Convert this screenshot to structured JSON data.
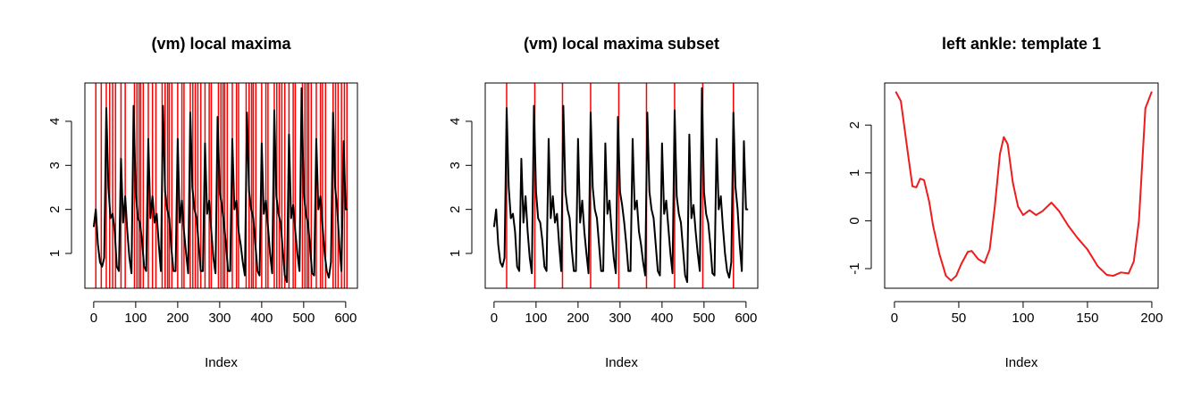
{
  "chart_data": [
    {
      "type": "line",
      "title": "(vm) local maxima",
      "xlabel": "Index",
      "xlim": [
        -21,
        628
      ],
      "ylim": [
        0.21,
        4.87
      ],
      "xticks": [
        0,
        100,
        200,
        300,
        400,
        500,
        600
      ],
      "yticks": [
        1,
        2,
        3,
        4
      ],
      "x": [
        0,
        5,
        10,
        15,
        20,
        25,
        30,
        35,
        40,
        45,
        50,
        55,
        60,
        65,
        70,
        75,
        80,
        85,
        90,
        95,
        100,
        105,
        110,
        115,
        120,
        125,
        130,
        135,
        140,
        145,
        150,
        155,
        160,
        165,
        170,
        175,
        180,
        185,
        190,
        195,
        200,
        205,
        210,
        215,
        220,
        225,
        230,
        235,
        240,
        245,
        250,
        255,
        260,
        265,
        270,
        275,
        280,
        285,
        290,
        295,
        300,
        305,
        310,
        315,
        320,
        325,
        330,
        335,
        340,
        345,
        350,
        355,
        360,
        365,
        370,
        375,
        380,
        385,
        390,
        395,
        400,
        405,
        410,
        415,
        420,
        425,
        430,
        435,
        440,
        445,
        450,
        455,
        460,
        465,
        470,
        475,
        480,
        485,
        490,
        495,
        500,
        505,
        510,
        515,
        520,
        525,
        530,
        535,
        540,
        545,
        550,
        555,
        560,
        565,
        570,
        575,
        580,
        585,
        590,
        595,
        600,
        605
      ],
      "series": [
        {
          "color": "#000000",
          "values": [
            1.6,
            2.0,
            1.2,
            0.8,
            0.7,
            0.9,
            4.3,
            2.5,
            1.8,
            1.9,
            1.5,
            0.7,
            0.6,
            3.15,
            1.7,
            2.3,
            1.5,
            0.9,
            0.55,
            4.35,
            2.4,
            1.8,
            1.7,
            1.3,
            0.7,
            0.6,
            3.6,
            1.8,
            2.3,
            1.7,
            1.9,
            1.2,
            0.6,
            4.35,
            2.4,
            2.0,
            1.8,
            1.1,
            0.6,
            0.6,
            3.6,
            1.7,
            2.2,
            1.5,
            1.0,
            0.55,
            4.2,
            2.5,
            2.0,
            1.8,
            1.2,
            0.6,
            0.6,
            3.5,
            1.9,
            2.2,
            1.5,
            0.9,
            0.55,
            4.1,
            2.4,
            2.1,
            1.7,
            1.2,
            0.6,
            0.6,
            3.6,
            2.0,
            2.2,
            1.5,
            1.2,
            0.8,
            0.5,
            4.2,
            2.4,
            2.0,
            1.8,
            1.2,
            0.6,
            0.5,
            3.5,
            1.9,
            2.2,
            1.6,
            1.0,
            0.55,
            4.25,
            2.3,
            1.9,
            1.7,
            1.1,
            0.5,
            0.35,
            3.7,
            1.8,
            2.1,
            1.5,
            1.0,
            0.6,
            4.75,
            2.4,
            1.9,
            1.7,
            1.2,
            0.55,
            0.5,
            3.6,
            2.0,
            2.3,
            1.6,
            1.0,
            0.6,
            0.45,
            0.8,
            4.2,
            2.5,
            2.0,
            1.2,
            0.6,
            3.55,
            2.0,
            2.0
          ]
        }
      ],
      "vline_color": "#ff0000",
      "vlines": [
        5,
        18,
        30,
        38,
        45,
        52,
        65,
        75,
        97,
        103,
        108,
        112,
        118,
        130,
        140,
        148,
        163,
        170,
        176,
        180,
        186,
        200,
        210,
        215,
        230,
        236,
        242,
        248,
        255,
        265,
        275,
        280,
        297,
        303,
        308,
        312,
        318,
        330,
        340,
        345,
        363,
        370,
        376,
        380,
        386,
        400,
        410,
        415,
        430,
        436,
        442,
        448,
        455,
        465,
        475,
        480,
        497,
        503,
        508,
        512,
        518,
        530,
        540,
        545,
        552,
        570,
        576,
        582,
        590,
        597,
        603
      ]
    },
    {
      "type": "line",
      "title": "(vm) local maxima subset",
      "xlabel": "Index",
      "xlim": [
        -21,
        628
      ],
      "ylim": [
        0.21,
        4.87
      ],
      "xticks": [
        0,
        100,
        200,
        300,
        400,
        500,
        600
      ],
      "yticks": [
        1,
        2,
        3,
        4
      ],
      "x": [
        0,
        5,
        10,
        15,
        20,
        25,
        30,
        35,
        40,
        45,
        50,
        55,
        60,
        65,
        70,
        75,
        80,
        85,
        90,
        95,
        100,
        105,
        110,
        115,
        120,
        125,
        130,
        135,
        140,
        145,
        150,
        155,
        160,
        165,
        170,
        175,
        180,
        185,
        190,
        195,
        200,
        205,
        210,
        215,
        220,
        225,
        230,
        235,
        240,
        245,
        250,
        255,
        260,
        265,
        270,
        275,
        280,
        285,
        290,
        295,
        300,
        305,
        310,
        315,
        320,
        325,
        330,
        335,
        340,
        345,
        350,
        355,
        360,
        365,
        370,
        375,
        380,
        385,
        390,
        395,
        400,
        405,
        410,
        415,
        420,
        425,
        430,
        435,
        440,
        445,
        450,
        455,
        460,
        465,
        470,
        475,
        480,
        485,
        490,
        495,
        500,
        505,
        510,
        515,
        520,
        525,
        530,
        535,
        540,
        545,
        550,
        555,
        560,
        565,
        570,
        575,
        580,
        585,
        590,
        595,
        600,
        605
      ],
      "series": [
        {
          "color": "#000000",
          "values": [
            1.6,
            2.0,
            1.2,
            0.8,
            0.7,
            0.9,
            4.3,
            2.5,
            1.8,
            1.9,
            1.5,
            0.7,
            0.6,
            3.15,
            1.7,
            2.3,
            1.5,
            0.9,
            0.55,
            4.35,
            2.4,
            1.8,
            1.7,
            1.3,
            0.7,
            0.6,
            3.6,
            1.8,
            2.3,
            1.7,
            1.9,
            1.2,
            0.6,
            4.35,
            2.4,
            2.0,
            1.8,
            1.1,
            0.6,
            0.6,
            3.6,
            1.7,
            2.2,
            1.5,
            1.0,
            0.55,
            4.2,
            2.5,
            2.0,
            1.8,
            1.2,
            0.6,
            0.6,
            3.5,
            1.9,
            2.2,
            1.5,
            0.9,
            0.55,
            4.1,
            2.4,
            2.1,
            1.7,
            1.2,
            0.6,
            0.6,
            3.6,
            2.0,
            2.2,
            1.5,
            1.2,
            0.8,
            0.5,
            4.2,
            2.4,
            2.0,
            1.8,
            1.2,
            0.6,
            0.5,
            3.5,
            1.9,
            2.2,
            1.6,
            1.0,
            0.55,
            4.25,
            2.3,
            1.9,
            1.7,
            1.1,
            0.5,
            0.35,
            3.7,
            1.8,
            2.1,
            1.5,
            1.0,
            0.6,
            4.75,
            2.4,
            1.9,
            1.7,
            1.2,
            0.55,
            0.5,
            3.6,
            2.0,
            2.3,
            1.6,
            1.0,
            0.6,
            0.45,
            0.8,
            4.2,
            2.5,
            2.0,
            1.2,
            0.6,
            3.55,
            2.0,
            2.0
          ]
        }
      ],
      "vline_color": "#ff0000",
      "vlines": [
        30,
        97,
        163,
        230,
        297,
        363,
        430,
        497,
        570
      ]
    },
    {
      "type": "line",
      "title": "left ankle: template 1",
      "xlabel": "Index",
      "xlim": [
        -7.6,
        204.9
      ],
      "ylim": [
        -1.41,
        2.88
      ],
      "xticks": [
        0,
        50,
        100,
        150,
        200
      ],
      "yticks": [
        -1,
        0,
        1,
        2
      ],
      "x": [
        1,
        5,
        10,
        14,
        17,
        20,
        23,
        27,
        30,
        35,
        40,
        44,
        48,
        52,
        57,
        60,
        65,
        70,
        74,
        78,
        82,
        85,
        88,
        92,
        96,
        100,
        105,
        110,
        115,
        122,
        128,
        135,
        142,
        150,
        158,
        165,
        170,
        176,
        182,
        186,
        190,
        195,
        200
      ],
      "series": [
        {
          "color": "#ee1c1c",
          "values": [
            2.7,
            2.5,
            1.5,
            0.72,
            0.7,
            0.88,
            0.85,
            0.4,
            -0.1,
            -0.7,
            -1.15,
            -1.25,
            -1.15,
            -0.9,
            -0.65,
            -0.63,
            -0.8,
            -0.88,
            -0.6,
            0.3,
            1.4,
            1.75,
            1.6,
            0.8,
            0.3,
            0.12,
            0.22,
            0.12,
            0.2,
            0.38,
            0.2,
            -0.1,
            -0.35,
            -0.6,
            -0.95,
            -1.13,
            -1.15,
            -1.08,
            -1.1,
            -0.85,
            0.0,
            2.35,
            2.7
          ]
        }
      ]
    }
  ]
}
